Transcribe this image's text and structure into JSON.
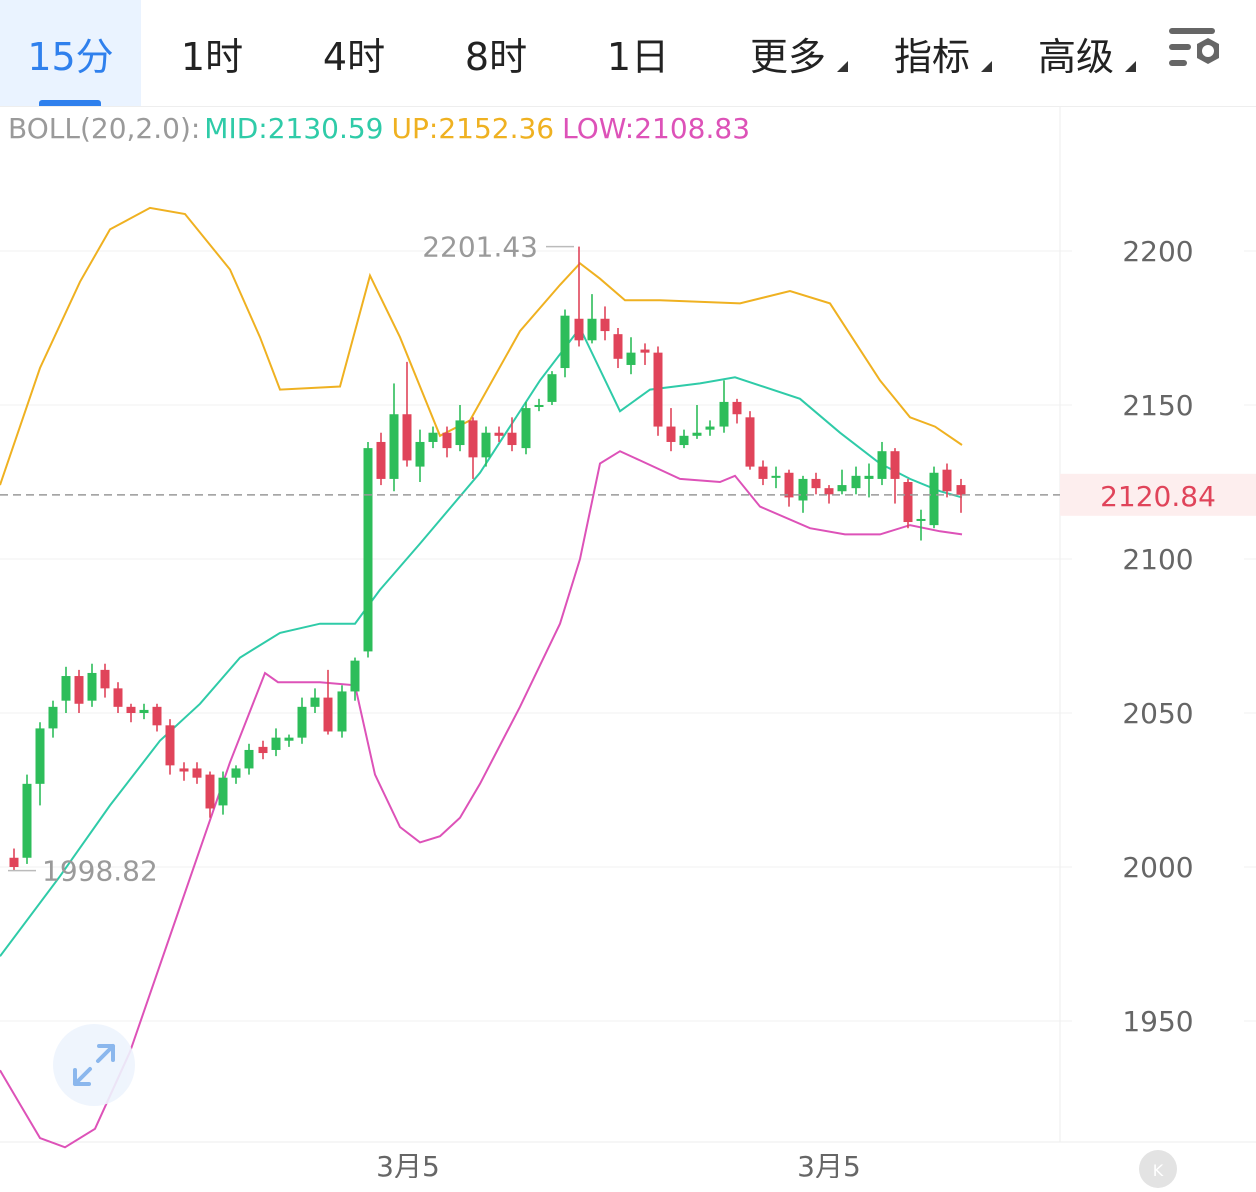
{
  "tabs": [
    {
      "label": "15分",
      "active": true
    },
    {
      "label": "1时"
    },
    {
      "label": "4时"
    },
    {
      "label": "8时"
    },
    {
      "label": "1日"
    },
    {
      "label": "更多",
      "dropdown": true
    },
    {
      "label": "指标",
      "dropdown": true
    },
    {
      "label": "高级",
      "dropdown": true
    }
  ],
  "legend": {
    "name": "BOLL(20,2.0):",
    "mid": "MID:2130.59",
    "up": "UP:2152.36",
    "low": "LOW:2108.83"
  },
  "price_axis": [
    "2200",
    "2150",
    "2100",
    "2050",
    "2000",
    "1950"
  ],
  "current_price": "2120.84",
  "max_marker": "2201.43",
  "min_marker": "1998.82",
  "time_axis": [
    "3月5",
    "3月5"
  ],
  "icons": {
    "settings": "chart-settings-icon",
    "expand": "expand-icon",
    "kline": "k-line-icon"
  },
  "colors": {
    "up": "#2dbd5a",
    "down": "#e0445a",
    "mid": "#2fcba8",
    "upper": "#efb121",
    "lower": "#dd52b8",
    "accent": "#2f80ed",
    "axis_text": "#666666"
  }
}
